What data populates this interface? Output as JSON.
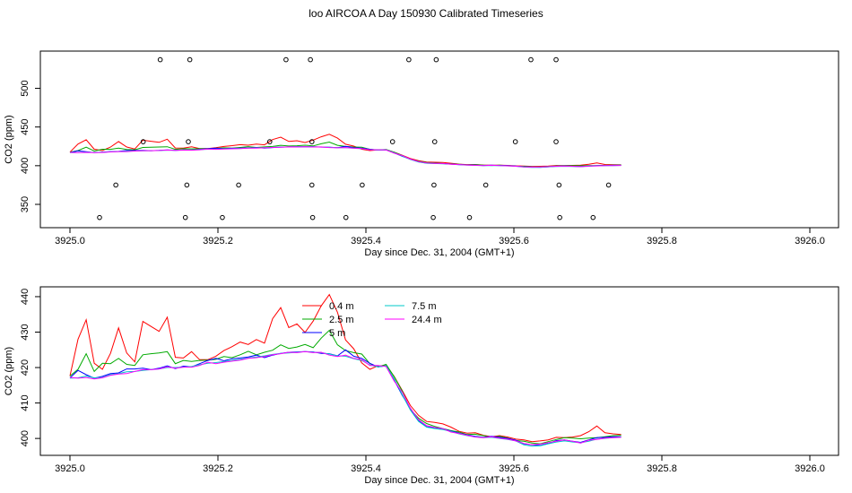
{
  "title": "loo AIRCOA A  Day 150930  Calibrated Timeseries",
  "chart_data": [
    {
      "type": "scatter",
      "xlabel": "Day since Dec. 31, 2004 (GMT+1)",
      "ylabel": "CO2 (ppm)",
      "xlim": [
        3925.0,
        3926.0
      ],
      "ylim": [
        328,
        540
      ],
      "xticks": [
        "3925.0",
        "3925.2",
        "3925.4",
        "3925.6",
        "3925.8",
        "3926.0"
      ],
      "yticks": [
        "350",
        "400",
        "450",
        "500"
      ],
      "grid": false,
      "lines": [
        {
          "name": "0.4 m",
          "color": "#ff0000",
          "values": [
            417.6,
            428.0,
            433.5,
            421.2,
            419.5,
            424.0,
            431.2,
            424.1,
            421.6,
            433.0,
            431.6,
            430.2,
            434.2,
            422.9,
            422.7,
            424.5,
            422.2,
            422.2,
            423.2,
            424.8,
            425.9,
            427.2,
            426.5,
            427.9,
            426.9,
            433.8,
            436.9,
            431.3,
            432.3,
            429.9,
            433.1,
            437.4,
            440.6,
            435.6,
            427.8,
            425.3,
            421.3,
            419.5,
            420.5,
            420.6,
            417.5,
            413.5,
            409.3,
            406.5,
            404.8,
            404.5,
            404.1,
            403.2,
            402.0,
            401.5,
            401.6,
            400.9,
            400.5,
            400.8,
            400.4,
            399.8,
            399.6,
            399.1,
            399.3,
            399.6,
            400.3,
            400.2,
            400.4,
            400.8,
            401.9,
            403.5,
            401.6,
            401.3,
            401.1
          ]
        },
        {
          "name": "2.5 m",
          "color": "#00aa00",
          "values": [
            417.6,
            419.5,
            423.9,
            418.9,
            421.2,
            421.1,
            422.6,
            420.9,
            420.6,
            423.6,
            423.9,
            424.1,
            424.5,
            421.1,
            422.0,
            421.7,
            422.0,
            422.1,
            422.3,
            423.1,
            422.8,
            423.6,
            424.6,
            423.6,
            424.3,
            424.9,
            426.4,
            425.4,
            425.8,
            426.5,
            425.6,
            428.3,
            430.5,
            426.4,
            424.8,
            424.2,
            423.8,
            421.1,
            420.2,
            420.9,
            417.4,
            413.3,
            408.2,
            405.7,
            404.2,
            403.4,
            402.8,
            402.2,
            401.8,
            401.1,
            401.2,
            400.8,
            400.3,
            400.6,
            400.1,
            399.4,
            399.2,
            398.7,
            398.5,
            399.1,
            399.7,
            400.2,
            400.1,
            399.9,
            400.1,
            400.2,
            400.5,
            400.8,
            400.9
          ]
        },
        {
          "name": "5 m",
          "color": "#0000ff",
          "values": [
            417.1,
            419.2,
            418.0,
            417.0,
            417.5,
            418.3,
            418.5,
            419.6,
            419.6,
            419.8,
            419.4,
            419.8,
            420.5,
            419.7,
            420.4,
            420.2,
            421.1,
            422.0,
            422.6,
            421.9,
            422.5,
            422.7,
            423.0,
            423.5,
            422.8,
            423.5,
            424.0,
            424.3,
            424.4,
            424.5,
            424.4,
            424.0,
            423.9,
            423.3,
            425.0,
            423.2,
            422.6,
            421.2,
            420.2,
            420.5,
            416.5,
            412.1,
            408.5,
            405.0,
            403.3,
            403.0,
            402.7,
            402.1,
            401.5,
            401.0,
            400.6,
            400.3,
            400.6,
            400.3,
            400.0,
            399.5,
            398.5,
            398.2,
            398.0,
            398.6,
            399.4,
            399.6,
            399.2,
            398.9,
            399.6,
            400.2,
            400.3,
            400.5,
            400.5
          ]
        },
        {
          "name": "7.5 m",
          "color": "#00c8c8",
          "values": [
            417.0,
            417.1,
            417.6,
            417.1,
            417.2,
            418.0,
            418.3,
            418.8,
            418.9,
            419.2,
            419.4,
            419.6,
            420.0,
            420.0,
            420.1,
            420.3,
            420.8,
            421.2,
            421.4,
            421.7,
            422.0,
            422.3,
            422.7,
            423.0,
            423.3,
            423.7,
            424.0,
            424.1,
            424.3,
            424.5,
            424.3,
            424.2,
            423.8,
            423.3,
            423.2,
            422.5,
            422.0,
            420.7,
            420.2,
            420.5,
            416.8,
            412.3,
            408.0,
            404.8,
            403.2,
            402.8,
            402.5,
            402.0,
            401.3,
            400.8,
            400.5,
            400.2,
            400.3,
            400.0,
            399.7,
            399.3,
            398.2,
            397.8,
            397.9,
            398.5,
            399.0,
            399.3,
            399.0,
            398.8,
            399.2,
            399.8,
            400.0,
            400.2,
            400.4
          ]
        },
        {
          "name": "24.4 m",
          "color": "#ff00ff",
          "values": [
            417.2,
            417.0,
            417.2,
            416.8,
            417.1,
            417.8,
            418.2,
            418.3,
            418.9,
            419.4,
            419.4,
            419.6,
            420.2,
            419.8,
            420.1,
            420.1,
            420.6,
            421.5,
            421.1,
            421.5,
            421.8,
            422.1,
            422.6,
            422.8,
            423.1,
            423.6,
            423.9,
            424.3,
            424.2,
            424.5,
            424.2,
            424.3,
            423.5,
            423.1,
            423.5,
            422.6,
            422.2,
            420.6,
            420.6,
            420.3,
            416.2,
            413.0,
            408.5,
            405.3,
            403.6,
            403.1,
            402.8,
            401.8,
            401.4,
            400.9,
            400.4,
            400.2,
            400.5,
            400.1,
            399.8,
            399.3,
            398.6,
            398.2,
            398.4,
            398.8,
            399.2,
            399.6,
            399.2,
            398.7,
            399.5,
            399.7,
            400.1,
            400.2,
            400.3
          ]
        }
      ],
      "line_x_start": 3925.0,
      "line_x_end": 3925.745,
      "points": [
        {
          "x": 3925.122,
          "y": 537
        },
        {
          "x": 3925.162,
          "y": 537
        },
        {
          "x": 3925.292,
          "y": 537
        },
        {
          "x": 3925.325,
          "y": 537
        },
        {
          "x": 3925.458,
          "y": 537
        },
        {
          "x": 3925.495,
          "y": 537
        },
        {
          "x": 3925.623,
          "y": 537
        },
        {
          "x": 3925.657,
          "y": 537
        },
        {
          "x": 3925.099,
          "y": 431
        },
        {
          "x": 3925.16,
          "y": 431
        },
        {
          "x": 3925.27,
          "y": 431
        },
        {
          "x": 3925.327,
          "y": 431
        },
        {
          "x": 3925.436,
          "y": 431
        },
        {
          "x": 3925.493,
          "y": 431
        },
        {
          "x": 3925.602,
          "y": 431
        },
        {
          "x": 3925.657,
          "y": 431
        },
        {
          "x": 3925.062,
          "y": 375
        },
        {
          "x": 3925.158,
          "y": 375
        },
        {
          "x": 3925.228,
          "y": 375
        },
        {
          "x": 3925.327,
          "y": 375
        },
        {
          "x": 3925.395,
          "y": 375
        },
        {
          "x": 3925.492,
          "y": 375
        },
        {
          "x": 3925.562,
          "y": 375
        },
        {
          "x": 3925.661,
          "y": 375
        },
        {
          "x": 3925.728,
          "y": 375
        },
        {
          "x": 3925.04,
          "y": 333
        },
        {
          "x": 3925.156,
          "y": 333
        },
        {
          "x": 3925.206,
          "y": 333
        },
        {
          "x": 3925.328,
          "y": 333
        },
        {
          "x": 3925.373,
          "y": 333
        },
        {
          "x": 3925.491,
          "y": 333
        },
        {
          "x": 3925.54,
          "y": 333
        },
        {
          "x": 3925.662,
          "y": 333
        },
        {
          "x": 3925.707,
          "y": 333
        }
      ]
    },
    {
      "type": "line",
      "xlabel": "Day since Dec. 31, 2004 (GMT+1)",
      "ylabel": "CO2 (ppm)",
      "xlim": [
        3925.0,
        3926.0
      ],
      "ylim": [
        397,
        441
      ],
      "xticks": [
        "3925.0",
        "3925.2",
        "3925.4",
        "3925.6",
        "3925.8",
        "3926.0"
      ],
      "yticks": [
        "400",
        "410",
        "420",
        "430",
        "440"
      ],
      "grid": false,
      "legend": "top-center",
      "series": [
        {
          "name": "0.4 m",
          "color": "#ff0000"
        },
        {
          "name": "2.5 m",
          "color": "#00aa00"
        },
        {
          "name": "5 m",
          "color": "#0000ff"
        },
        {
          "name": "7.5 m",
          "color": "#00c8c8"
        },
        {
          "name": "24.4 m",
          "color": "#ff00ff"
        }
      ]
    }
  ]
}
